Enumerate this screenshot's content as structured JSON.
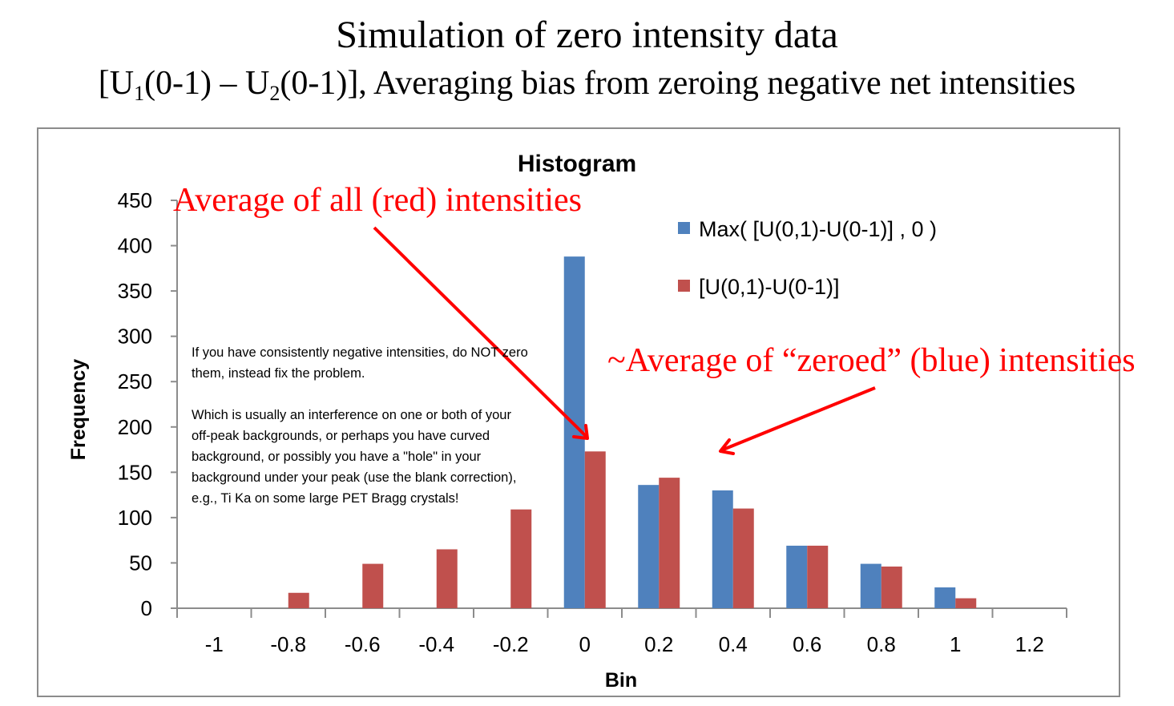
{
  "slide": {
    "title": "Simulation of zero intensity data",
    "subtitle_parts": {
      "open": "[U",
      "sub1": "1",
      "mid1": "(0-1) – U",
      "sub2": "2",
      "rest": "(0-1)], Averaging bias from zeroing negative net intensities"
    }
  },
  "annotations": {
    "red_average": "Average of all (red) intensities",
    "blue_average": "~Average of “zeroed” (blue) intensities",
    "arrow_color": "#ff0000"
  },
  "note": {
    "paragraph1": "If you have consistently negative intensities, do NOT zero them, instead fix the problem.",
    "paragraph2": "Which is usually an interference on one or both of your off-peak backgrounds, or perhaps you have curved background, or possibly you have a \"hole\" in your background under your peak (use the blank correction), e.g., Ti Ka on some large PET Bragg crystals!"
  },
  "chart_data": {
    "type": "bar",
    "title": "Histogram",
    "xlabel": "Bin",
    "ylabel": "Frequency",
    "categories": [
      "-1",
      "-0.8",
      "-0.6",
      "-0.4",
      "-0.2",
      "0",
      "0.2",
      "0.4",
      "0.6",
      "0.8",
      "1",
      "1.2"
    ],
    "ylim": [
      0,
      450
    ],
    "yticks": [
      0,
      50,
      100,
      150,
      200,
      250,
      300,
      350,
      400,
      450
    ],
    "grid": false,
    "legend_position": "top-right",
    "series": [
      {
        "name": "Max( [U(0,1)-U(0-1)] , 0 )",
        "color": "#4f81bd",
        "values": [
          0,
          0,
          0,
          0,
          0,
          388,
          136,
          130,
          69,
          49,
          23,
          0
        ]
      },
      {
        "name": "[U(0,1)-U(0-1)]",
        "color": "#c0504d",
        "values": [
          0,
          17,
          49,
          65,
          109,
          173,
          144,
          110,
          69,
          46,
          11,
          0
        ]
      }
    ]
  }
}
